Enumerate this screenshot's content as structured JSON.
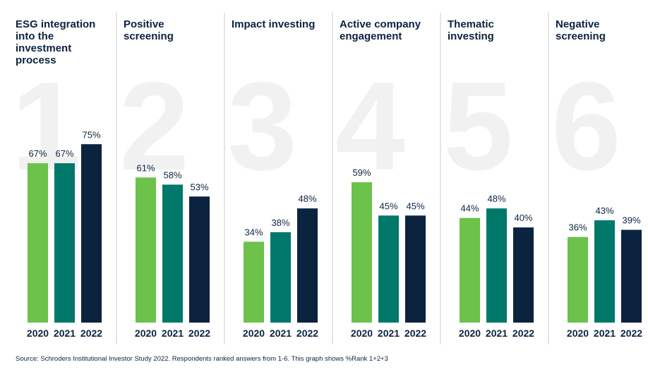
{
  "chart_data": [
    {
      "type": "bar",
      "rank": 1,
      "title": "ESG integration into the investment process",
      "categories": [
        "2020",
        "2021",
        "2022"
      ],
      "colors": [
        "#6cc24a",
        "#00786a",
        "#0c2340"
      ],
      "values": [
        67,
        67,
        75
      ],
      "value_labels": [
        "67%",
        "67%",
        "75%"
      ]
    },
    {
      "type": "bar",
      "rank": 2,
      "title": "Positive screening",
      "categories": [
        "2020",
        "2021",
        "2022"
      ],
      "colors": [
        "#6cc24a",
        "#00786a",
        "#0c2340"
      ],
      "values": [
        61,
        58,
        53
      ],
      "value_labels": [
        "61%",
        "58%",
        "53%"
      ]
    },
    {
      "type": "bar",
      "rank": 3,
      "title": "Impact investing",
      "categories": [
        "2020",
        "2021",
        "2022"
      ],
      "colors": [
        "#6cc24a",
        "#00786a",
        "#0c2340"
      ],
      "values": [
        34,
        38,
        48
      ],
      "value_labels": [
        "34%",
        "38%",
        "48%"
      ]
    },
    {
      "type": "bar",
      "rank": 4,
      "title": "Active company engagement",
      "categories": [
        "2020",
        "2021",
        "2022"
      ],
      "colors": [
        "#6cc24a",
        "#00786a",
        "#0c2340"
      ],
      "values": [
        59,
        45,
        45
      ],
      "value_labels": [
        "59%",
        "45%",
        "45%"
      ]
    },
    {
      "type": "bar",
      "rank": 5,
      "title": "Thematic investing",
      "categories": [
        "2020",
        "2021",
        "2022"
      ],
      "colors": [
        "#6cc24a",
        "#00786a",
        "#0c2340"
      ],
      "values": [
        44,
        48,
        40
      ],
      "value_labels": [
        "44%",
        "48%",
        "40%"
      ]
    },
    {
      "type": "bar",
      "rank": 6,
      "title": "Negative screening",
      "categories": [
        "2020",
        "2021",
        "2022"
      ],
      "colors": [
        "#6cc24a",
        "#00786a",
        "#0c2340"
      ],
      "values": [
        36,
        43,
        39
      ],
      "value_labels": [
        "36%",
        "43%",
        "39%"
      ]
    }
  ],
  "source": "Source: Schroders Institutional Investor Study 2022. Respondents ranked answers from 1-6. This graph shows %Rank 1+2+3"
}
